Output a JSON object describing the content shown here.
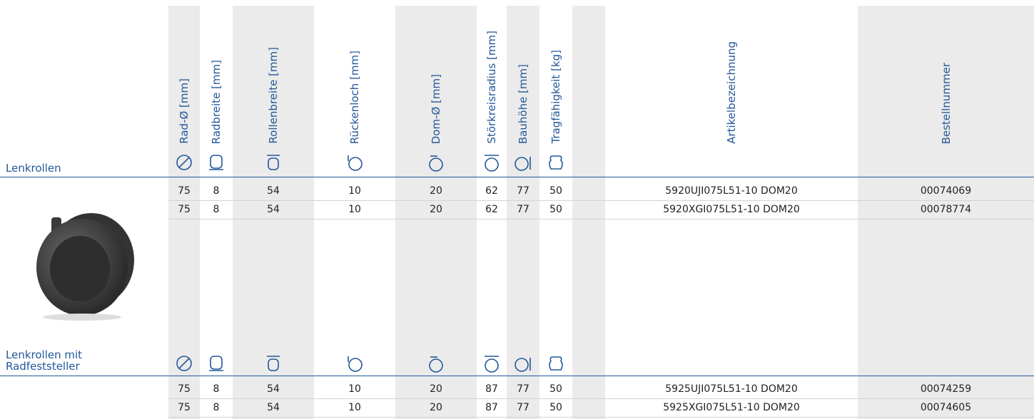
{
  "headers": [
    "Rad-Ø [mm]",
    "Radbreite [mm]",
    "Rollenbreite [mm]",
    "Rückenloch [mm]",
    "Dom-Ø [mm]",
    "Störkreisradius [mm]",
    "Bauhöhe [mm]",
    "Tragfähigkeit [kg]",
    "Artikelbezeichnung",
    "Bestellnummer"
  ],
  "sections": [
    {
      "title": "Lenkrollen",
      "rows": [
        [
          "75",
          "8",
          "54",
          "10",
          "20",
          "62",
          "77",
          "50",
          "5920UJI075L51-10 DOM20",
          "00074069"
        ],
        [
          "75",
          "8",
          "54",
          "10",
          "20",
          "62",
          "77",
          "50",
          "5920XGI075L51-10 DOM20",
          "00078774"
        ]
      ]
    },
    {
      "title": "Lenkrollen mit Radfeststeller",
      "rows": [
        [
          "75",
          "8",
          "54",
          "10",
          "20",
          "87",
          "77",
          "50",
          "5925UJI075L51-10 DOM20",
          "00074259"
        ],
        [
          "75",
          "8",
          "54",
          "10",
          "20",
          "87",
          "77",
          "50",
          "5925XGI075L51-10 DOM20",
          "00074605"
        ]
      ]
    }
  ]
}
